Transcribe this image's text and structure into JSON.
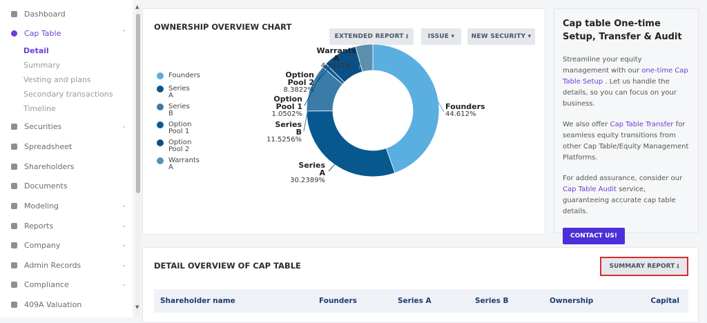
{
  "sidebar": {
    "items": [
      {
        "label": "Dashboard"
      },
      {
        "label": "Cap Table",
        "expand": "up",
        "active": true,
        "children": [
          {
            "label": "Detail",
            "active": true
          },
          {
            "label": "Summary"
          },
          {
            "label": "Vesting and plans"
          },
          {
            "label": "Secondary transactions"
          },
          {
            "label": "Timeline"
          }
        ]
      },
      {
        "label": "Securities",
        "expand": "down"
      },
      {
        "label": "Spreadsheet"
      },
      {
        "label": "Shareholders"
      },
      {
        "label": "Documents"
      },
      {
        "label": "Modeling",
        "expand": "down"
      },
      {
        "label": "Reports",
        "expand": "down"
      },
      {
        "label": "Company",
        "expand": "down"
      },
      {
        "label": "Admin Records",
        "expand": "down"
      },
      {
        "label": "Compliance",
        "expand": "down"
      },
      {
        "label": "409A Valuation"
      }
    ]
  },
  "chart_card": {
    "title": "OWNERSHIP OVERVIEW CHART",
    "buttons": [
      "EXTENDED REPORT",
      "ISSUE",
      "NEW SECURITY"
    ]
  },
  "chart_data": {
    "type": "pie",
    "donut": true,
    "legend": "left",
    "categories": [
      "Founders",
      "Series A",
      "Series B",
      "Option Pool 1",
      "Option Pool 2",
      "Warrants A"
    ],
    "values": [
      44.612,
      30.2389,
      11.5256,
      1.0502,
      8.3822,
      4.1911
    ],
    "value_labels": [
      "44.612%",
      "30.2389%",
      "11.5256%",
      "1.0502%",
      "8.3822%",
      "4.1911%"
    ],
    "colors": [
      "#5aaee0",
      "#07588f",
      "#3a7ba8",
      "#0a5d93",
      "#0a4f86",
      "#5c8fae"
    ]
  },
  "promo": {
    "title": "Cap table One-time Setup, Transfer & Audit",
    "paragraphs": [
      [
        {
          "text": "Streamline your equity management with our "
        },
        {
          "text": "one-time Cap Table Setup",
          "link": true
        },
        {
          "text": " . Let us handle the details, so you can focus on your business."
        }
      ],
      [
        {
          "text": "We also offer "
        },
        {
          "text": "Cap Table Transfer",
          "link": true
        },
        {
          "text": " for seamless equity transitions from other Cap Table/Equity Management Platforms."
        }
      ],
      [
        {
          "text": "For added assurance, consider our "
        },
        {
          "text": "Cap Table Audit",
          "link": true
        },
        {
          "text": " service, guaranteeing accurate cap table details."
        }
      ]
    ],
    "button": "CONTACT US!"
  },
  "detail": {
    "title": "DETAIL OVERVIEW OF CAP TABLE",
    "button": "SUMMARY REPORT",
    "columns": [
      "Shareholder name",
      "Founders",
      "Series A",
      "Series B",
      "Ownership",
      "Capital"
    ]
  }
}
